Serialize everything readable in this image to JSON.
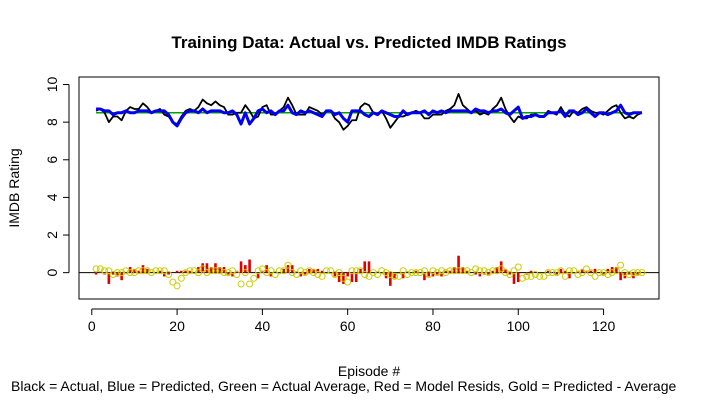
{
  "chart_data": {
    "type": "line",
    "title": "Training Data: Actual vs. Predicted IMDB Ratings",
    "xlabel": "Episode #",
    "ylabel": "IMDB Rating",
    "caption": "Black = Actual, Blue = Predicted, Green = Actual Average, Red = Model Resids, Gold = Predicted - Average",
    "xlim": [
      -3,
      133
    ],
    "ylim": [
      -1.4,
      10.4
    ],
    "x_ticks": [
      0,
      20,
      40,
      60,
      80,
      100,
      120
    ],
    "y_ticks": [
      0,
      2,
      4,
      6,
      8,
      10
    ],
    "grid": false,
    "colors": {
      "actual": "#000000",
      "predicted": "#0000ee",
      "average": "#00a000",
      "residuals": "#e00000",
      "pred_minus_avg": "#cccc00",
      "zero_line": "#000000"
    },
    "average": 8.5,
    "series": [
      {
        "name": "Actual",
        "values": [
          8.6,
          8.7,
          8.5,
          8.0,
          8.3,
          8.3,
          8.1,
          8.6,
          8.8,
          8.7,
          8.7,
          9.0,
          8.8,
          8.5,
          8.6,
          8.7,
          8.4,
          8.3,
          8.0,
          7.9,
          8.3,
          8.6,
          8.7,
          8.6,
          8.8,
          9.2,
          9.0,
          8.9,
          9.1,
          8.9,
          8.8,
          8.4,
          8.4,
          8.5,
          8.5,
          8.9,
          8.6,
          8.2,
          8.3,
          8.8,
          8.9,
          8.4,
          8.4,
          8.6,
          8.8,
          9.3,
          8.9,
          8.4,
          8.4,
          8.4,
          8.8,
          8.7,
          8.6,
          8.4,
          8.6,
          8.6,
          8.2,
          8.0,
          7.6,
          7.8,
          8.1,
          8.1,
          8.8,
          9.0,
          8.9,
          8.5,
          8.4,
          8.6,
          8.2,
          7.7,
          8.0,
          8.3,
          8.3,
          8.4,
          8.5,
          8.6,
          8.5,
          8.2,
          8.2,
          8.4,
          8.4,
          8.4,
          8.6,
          8.7,
          8.9,
          9.5,
          8.9,
          8.7,
          8.5,
          8.6,
          8.4,
          8.5,
          8.4,
          8.7,
          8.9,
          9.3,
          8.7,
          8.3,
          8.0,
          8.3,
          8.2,
          8.2,
          8.4,
          8.4,
          8.3,
          8.3,
          8.6,
          8.5,
          8.4,
          8.8,
          8.4,
          8.3,
          8.6,
          8.5,
          8.7,
          8.8,
          8.6,
          8.5,
          8.5,
          8.4,
          8.6,
          8.8,
          8.9,
          8.5,
          8.2,
          8.3,
          8.2,
          8.4,
          8.5
        ]
      },
      {
        "name": "Predicted",
        "values": [
          8.7,
          8.7,
          8.6,
          8.6,
          8.4,
          8.5,
          8.5,
          8.6,
          8.5,
          8.5,
          8.6,
          8.6,
          8.6,
          8.5,
          8.6,
          8.6,
          8.6,
          8.4,
          8.0,
          7.8,
          8.2,
          8.5,
          8.6,
          8.6,
          8.5,
          8.7,
          8.5,
          8.6,
          8.6,
          8.6,
          8.5,
          8.5,
          8.6,
          8.4,
          7.9,
          8.5,
          7.9,
          8.2,
          8.6,
          8.7,
          8.5,
          8.6,
          8.4,
          8.6,
          8.6,
          8.9,
          8.5,
          8.4,
          8.6,
          8.5,
          8.6,
          8.5,
          8.4,
          8.3,
          8.6,
          8.6,
          8.4,
          8.5,
          8.2,
          8.0,
          8.6,
          8.6,
          8.6,
          8.4,
          8.3,
          8.5,
          8.4,
          8.6,
          8.5,
          8.4,
          8.3,
          8.3,
          8.6,
          8.4,
          8.5,
          8.5,
          8.5,
          8.6,
          8.4,
          8.6,
          8.5,
          8.6,
          8.5,
          8.6,
          8.6,
          8.6,
          8.6,
          8.6,
          8.5,
          8.7,
          8.6,
          8.6,
          8.5,
          8.6,
          8.6,
          8.7,
          8.5,
          8.4,
          8.6,
          8.8,
          8.2,
          8.3,
          8.3,
          8.4,
          8.3,
          8.3,
          8.5,
          8.5,
          8.5,
          8.6,
          8.3,
          8.6,
          8.6,
          8.4,
          8.5,
          8.7,
          8.5,
          8.3,
          8.5,
          8.5,
          8.4,
          8.5,
          8.6,
          8.9,
          8.5,
          8.4,
          8.5,
          8.5,
          8.5
        ]
      }
    ]
  }
}
